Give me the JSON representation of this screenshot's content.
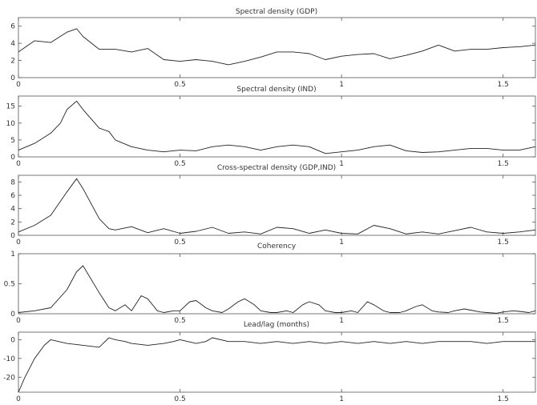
{
  "chart_data": [
    {
      "type": "line",
      "title": "Spectral density (GDP)",
      "xlim": [
        0,
        1.6
      ],
      "ylim": [
        0,
        7
      ],
      "yticks": [
        0,
        2,
        4,
        6
      ],
      "xticks": [
        0,
        0.5,
        1,
        1.5
      ],
      "x": [
        0,
        0.05,
        0.1,
        0.15,
        0.18,
        0.2,
        0.25,
        0.3,
        0.35,
        0.4,
        0.45,
        0.5,
        0.55,
        0.6,
        0.65,
        0.7,
        0.75,
        0.8,
        0.85,
        0.9,
        0.95,
        1,
        1.05,
        1.1,
        1.15,
        1.2,
        1.25,
        1.3,
        1.35,
        1.4,
        1.45,
        1.5,
        1.55,
        1.6
      ],
      "series": [
        {
          "values": [
            3,
            4.3,
            4.1,
            5.3,
            5.7,
            4.8,
            3.3,
            3.3,
            3,
            3.4,
            2.1,
            1.9,
            2.1,
            1.9,
            1.5,
            1.9,
            2.4,
            3,
            3,
            2.8,
            2.1,
            2.5,
            2.7,
            2.8,
            2.2,
            2.6,
            3.1,
            3.8,
            3.1,
            3.3,
            3.3,
            3.5,
            3.6,
            3.8
          ]
        }
      ]
    },
    {
      "type": "line",
      "title": "Spectral density (IND)",
      "xlim": [
        0,
        1.6
      ],
      "ylim": [
        0,
        18
      ],
      "yticks": [
        0,
        5,
        10,
        15
      ],
      "xticks": [
        0,
        0.5,
        1,
        1.5
      ],
      "x": [
        0,
        0.05,
        0.1,
        0.13,
        0.15,
        0.18,
        0.2,
        0.25,
        0.28,
        0.3,
        0.35,
        0.4,
        0.45,
        0.5,
        0.55,
        0.6,
        0.65,
        0.7,
        0.75,
        0.8,
        0.85,
        0.9,
        0.95,
        1,
        1.05,
        1.1,
        1.15,
        1.2,
        1.25,
        1.3,
        1.35,
        1.4,
        1.45,
        1.5,
        1.55,
        1.6
      ],
      "series": [
        {
          "values": [
            2,
            4,
            7,
            10,
            14,
            16.5,
            14,
            8.5,
            7.5,
            5,
            3,
            2,
            1.5,
            2,
            1.8,
            3,
            3.5,
            3,
            2,
            3,
            3.5,
            3,
            1,
            1.5,
            2,
            3,
            3.5,
            1.8,
            1.3,
            1.5,
            2,
            2.5,
            2.5,
            2,
            2,
            3
          ]
        }
      ]
    },
    {
      "type": "line",
      "title": "Cross-spectral density (GDP,IND)",
      "xlim": [
        0,
        1.6
      ],
      "ylim": [
        0,
        9
      ],
      "yticks": [
        0,
        2,
        4,
        6,
        8
      ],
      "xticks": [
        0,
        0.5,
        1,
        1.5
      ],
      "x": [
        0,
        0.05,
        0.1,
        0.15,
        0.18,
        0.2,
        0.25,
        0.28,
        0.3,
        0.35,
        0.4,
        0.45,
        0.5,
        0.55,
        0.6,
        0.65,
        0.7,
        0.75,
        0.8,
        0.85,
        0.9,
        0.95,
        1,
        1.05,
        1.1,
        1.15,
        1.2,
        1.25,
        1.3,
        1.35,
        1.4,
        1.45,
        1.5,
        1.55,
        1.6
      ],
      "series": [
        {
          "values": [
            0.5,
            1.5,
            3,
            6.5,
            8.5,
            7,
            2.5,
            1,
            0.8,
            1.3,
            0.4,
            1,
            0.3,
            0.6,
            1.2,
            0.3,
            0.5,
            0.2,
            1.2,
            1,
            0.3,
            0.8,
            0.3,
            0.2,
            1.5,
            1,
            0.2,
            0.5,
            0.2,
            0.7,
            1.2,
            0.5,
            0.3,
            0.5,
            0.8
          ]
        }
      ]
    },
    {
      "type": "line",
      "title": "Coherency",
      "xlim": [
        0,
        1.6
      ],
      "ylim": [
        0,
        1
      ],
      "yticks": [
        0,
        0.5,
        1
      ],
      "xticks": [
        0,
        0.5,
        1,
        1.5
      ],
      "x": [
        0,
        0.05,
        0.1,
        0.15,
        0.18,
        0.2,
        0.25,
        0.28,
        0.3,
        0.33,
        0.35,
        0.38,
        0.4,
        0.43,
        0.45,
        0.48,
        0.5,
        0.53,
        0.55,
        0.58,
        0.6,
        0.63,
        0.65,
        0.68,
        0.7,
        0.73,
        0.75,
        0.78,
        0.8,
        0.83,
        0.85,
        0.88,
        0.9,
        0.93,
        0.95,
        0.98,
        1,
        1.03,
        1.05,
        1.08,
        1.1,
        1.13,
        1.15,
        1.18,
        1.2,
        1.23,
        1.25,
        1.28,
        1.3,
        1.33,
        1.35,
        1.38,
        1.4,
        1.43,
        1.45,
        1.48,
        1.5,
        1.53,
        1.55,
        1.58,
        1.6
      ],
      "series": [
        {
          "values": [
            0.02,
            0.05,
            0.1,
            0.4,
            0.7,
            0.8,
            0.35,
            0.1,
            0.05,
            0.15,
            0.05,
            0.3,
            0.25,
            0.05,
            0.02,
            0.05,
            0.05,
            0.2,
            0.22,
            0.1,
            0.05,
            0.02,
            0.08,
            0.2,
            0.25,
            0.15,
            0.05,
            0.02,
            0.02,
            0.05,
            0.02,
            0.15,
            0.2,
            0.15,
            0.05,
            0.02,
            0.02,
            0.05,
            0.02,
            0.2,
            0.15,
            0.05,
            0.02,
            0.02,
            0.05,
            0.12,
            0.15,
            0.05,
            0.03,
            0.02,
            0.05,
            0.08,
            0.06,
            0.03,
            0.02,
            0.01,
            0.03,
            0.05,
            0.04,
            0.02,
            0.05
          ]
        }
      ]
    },
    {
      "type": "line",
      "title": "Lead/lag (months)",
      "xlim": [
        0,
        1.6
      ],
      "ylim": [
        -28,
        4
      ],
      "yticks": [
        -20,
        -10,
        0
      ],
      "xticks": [
        0,
        0.5,
        1,
        1.5
      ],
      "x": [
        0,
        0.02,
        0.05,
        0.08,
        0.1,
        0.15,
        0.2,
        0.25,
        0.28,
        0.3,
        0.33,
        0.35,
        0.4,
        0.45,
        0.48,
        0.5,
        0.55,
        0.58,
        0.6,
        0.65,
        0.7,
        0.75,
        0.8,
        0.85,
        0.9,
        0.95,
        1,
        1.05,
        1.1,
        1.15,
        1.2,
        1.25,
        1.3,
        1.35,
        1.4,
        1.45,
        1.5,
        1.55,
        1.6
      ],
      "series": [
        {
          "values": [
            -28,
            -20,
            -10,
            -3,
            0,
            -2,
            -3,
            -4,
            1,
            0,
            -1,
            -2,
            -3,
            -2,
            -1,
            0,
            -2,
            -1,
            1,
            -1,
            -1,
            -2,
            -1,
            -2,
            -1,
            -2,
            -1,
            -2,
            -1,
            -2,
            -1,
            -2,
            -1,
            -1,
            -1,
            -2,
            -1,
            -1,
            -1
          ]
        }
      ]
    }
  ]
}
